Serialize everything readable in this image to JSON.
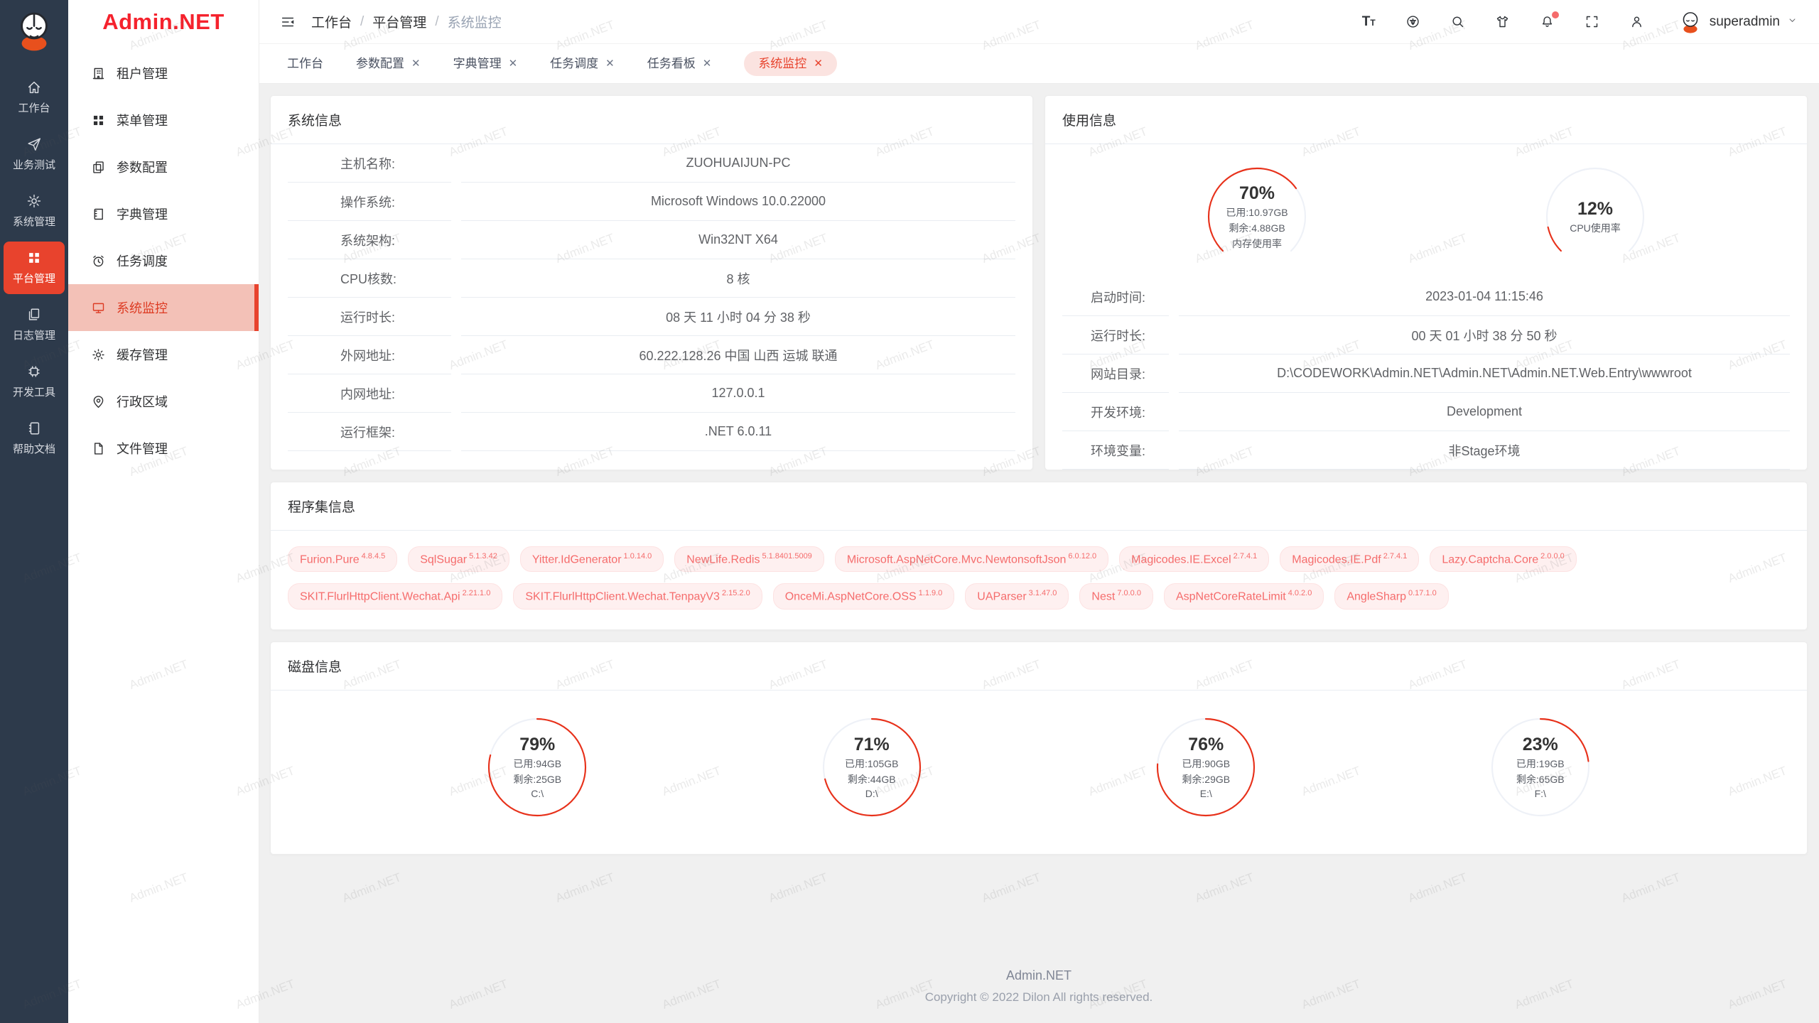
{
  "colors": {
    "accent": "#e8432d",
    "logo_red": "#f5222d",
    "gauge_red": "#e8311a",
    "gauge_track": "#eef1f7",
    "tag_text": "#f56c6c",
    "tag_bg": "#fef0f0",
    "tag_border": "#fde2e2",
    "rail_bg": "#2d3a4b"
  },
  "watermark": {
    "text": "Admin.NET"
  },
  "rail": {
    "items": [
      {
        "id": "workbench",
        "label": "工作台",
        "icon": "home",
        "active": false
      },
      {
        "id": "business-test",
        "label": "业务测试",
        "icon": "send",
        "active": false
      },
      {
        "id": "system-mgmt",
        "label": "系统管理",
        "icon": "gear",
        "active": false
      },
      {
        "id": "platform-mgmt",
        "label": "平台管理",
        "icon": "grid",
        "active": true
      },
      {
        "id": "log-mgmt",
        "label": "日志管理",
        "icon": "docs",
        "active": false
      },
      {
        "id": "dev-tools",
        "label": "开发工具",
        "icon": "chip",
        "active": false
      },
      {
        "id": "help-docs",
        "label": "帮助文档",
        "icon": "book",
        "active": false
      }
    ]
  },
  "sidebar": {
    "logo": "Admin.NET",
    "items": [
      {
        "id": "tenant",
        "label": "租户管理",
        "icon": "building",
        "active": false
      },
      {
        "id": "menu",
        "label": "菜单管理",
        "icon": "grid",
        "active": false
      },
      {
        "id": "param",
        "label": "参数配置",
        "icon": "copy",
        "active": false
      },
      {
        "id": "dict",
        "label": "字典管理",
        "icon": "notebook",
        "active": false
      },
      {
        "id": "task",
        "label": "任务调度",
        "icon": "alarm",
        "active": false
      },
      {
        "id": "monitor",
        "label": "系统监控",
        "icon": "monitor",
        "active": true
      },
      {
        "id": "cache",
        "label": "缓存管理",
        "icon": "sun",
        "active": false
      },
      {
        "id": "region",
        "label": "行政区域",
        "icon": "pin",
        "active": false
      },
      {
        "id": "file",
        "label": "文件管理",
        "icon": "file",
        "active": false
      }
    ]
  },
  "header": {
    "breadcrumb": [
      "工作台",
      "平台管理",
      "系统监控"
    ],
    "separator": "/",
    "icons": [
      "font-size",
      "language",
      "search",
      "theme",
      "notification",
      "fullscreen",
      "profile"
    ],
    "user": {
      "name": "superadmin"
    }
  },
  "tabs": [
    {
      "label": "工作台",
      "closable": false,
      "active": false
    },
    {
      "label": "参数配置",
      "closable": true,
      "active": false
    },
    {
      "label": "字典管理",
      "closable": true,
      "active": false
    },
    {
      "label": "任务调度",
      "closable": true,
      "active": false
    },
    {
      "label": "任务看板",
      "closable": true,
      "active": false
    },
    {
      "label": "系统监控",
      "closable": true,
      "active": true
    }
  ],
  "system_info": {
    "title": "系统信息",
    "rows": [
      {
        "label": "主机名称:",
        "value": "ZUOHUAIJUN-PC"
      },
      {
        "label": "操作系统:",
        "value": "Microsoft Windows 10.0.22000"
      },
      {
        "label": "系统架构:",
        "value": "Win32NT X64"
      },
      {
        "label": "CPU核数:",
        "value": "8 核"
      },
      {
        "label": "运行时长:",
        "value": "08 天 11 小时 04 分 38 秒"
      },
      {
        "label": "外网地址:",
        "value": "60.222.128.26 中国 山西 运城 联通"
      },
      {
        "label": "内网地址:",
        "value": "127.0.0.1"
      },
      {
        "label": "运行框架:",
        "value": ".NET 6.0.11"
      }
    ]
  },
  "usage_info": {
    "title": "使用信息",
    "gauges": [
      {
        "id": "memory",
        "percent": 70,
        "label": "70%",
        "lines": [
          "已用:10.97GB",
          "剩余:4.88GB",
          "内存使用率"
        ]
      },
      {
        "id": "cpu",
        "percent": 12,
        "label": "12%",
        "lines": [
          "CPU使用率"
        ]
      }
    ],
    "rows": [
      {
        "label": "启动时间:",
        "value": "2023-01-04 11:15:46"
      },
      {
        "label": "运行时长:",
        "value": "00 天 01 小时 38 分 50 秒"
      },
      {
        "label": "网站目录:",
        "value": "D:\\CODEWORK\\Admin.NET\\Admin.NET\\Admin.NET.Web.Entry\\wwwroot"
      },
      {
        "label": "开发环境:",
        "value": "Development"
      },
      {
        "label": "环境变量:",
        "value": "非Stage环境"
      }
    ]
  },
  "assemblies": {
    "title": "程序集信息",
    "tags": [
      {
        "name": "Furion.Pure",
        "version": "4.8.4.5"
      },
      {
        "name": "SqlSugar",
        "version": "5.1.3.42"
      },
      {
        "name": "Yitter.IdGenerator",
        "version": "1.0.14.0"
      },
      {
        "name": "NewLife.Redis",
        "version": "5.1.8401.5009"
      },
      {
        "name": "Microsoft.AspNetCore.Mvc.NewtonsoftJson",
        "version": "6.0.12.0"
      },
      {
        "name": "Magicodes.IE.Excel",
        "version": "2.7.4.1"
      },
      {
        "name": "Magicodes.IE.Pdf",
        "version": "2.7.4.1"
      },
      {
        "name": "Lazy.Captcha.Core",
        "version": "2.0.0.0"
      },
      {
        "name": "SKIT.FlurlHttpClient.Wechat.Api",
        "version": "2.21.1.0"
      },
      {
        "name": "SKIT.FlurlHttpClient.Wechat.TenpayV3",
        "version": "2.15.2.0"
      },
      {
        "name": "OnceMi.AspNetCore.OSS",
        "version": "1.1.9.0"
      },
      {
        "name": "UAParser",
        "version": "3.1.47.0"
      },
      {
        "name": "Nest",
        "version": "7.0.0.0"
      },
      {
        "name": "AspNetCoreRateLimit",
        "version": "4.0.2.0"
      },
      {
        "name": "AngleSharp",
        "version": "0.17.1.0"
      }
    ]
  },
  "disks": {
    "title": "磁盘信息",
    "rings": [
      {
        "id": "disk-c",
        "percent": 79,
        "label": "79%",
        "lines": [
          "已用:94GB",
          "剩余:25GB",
          "C:\\"
        ]
      },
      {
        "id": "disk-d",
        "percent": 71,
        "label": "71%",
        "lines": [
          "已用:105GB",
          "剩余:44GB",
          "D:\\"
        ]
      },
      {
        "id": "disk-e",
        "percent": 76,
        "label": "76%",
        "lines": [
          "已用:90GB",
          "剩余:29GB",
          "E:\\"
        ]
      },
      {
        "id": "disk-f",
        "percent": 23,
        "label": "23%",
        "lines": [
          "已用:19GB",
          "剩余:65GB",
          "F:\\"
        ]
      }
    ]
  },
  "footer": {
    "app": "Admin.NET",
    "copyright": "Copyright © 2022 Dilon All rights reserved."
  }
}
